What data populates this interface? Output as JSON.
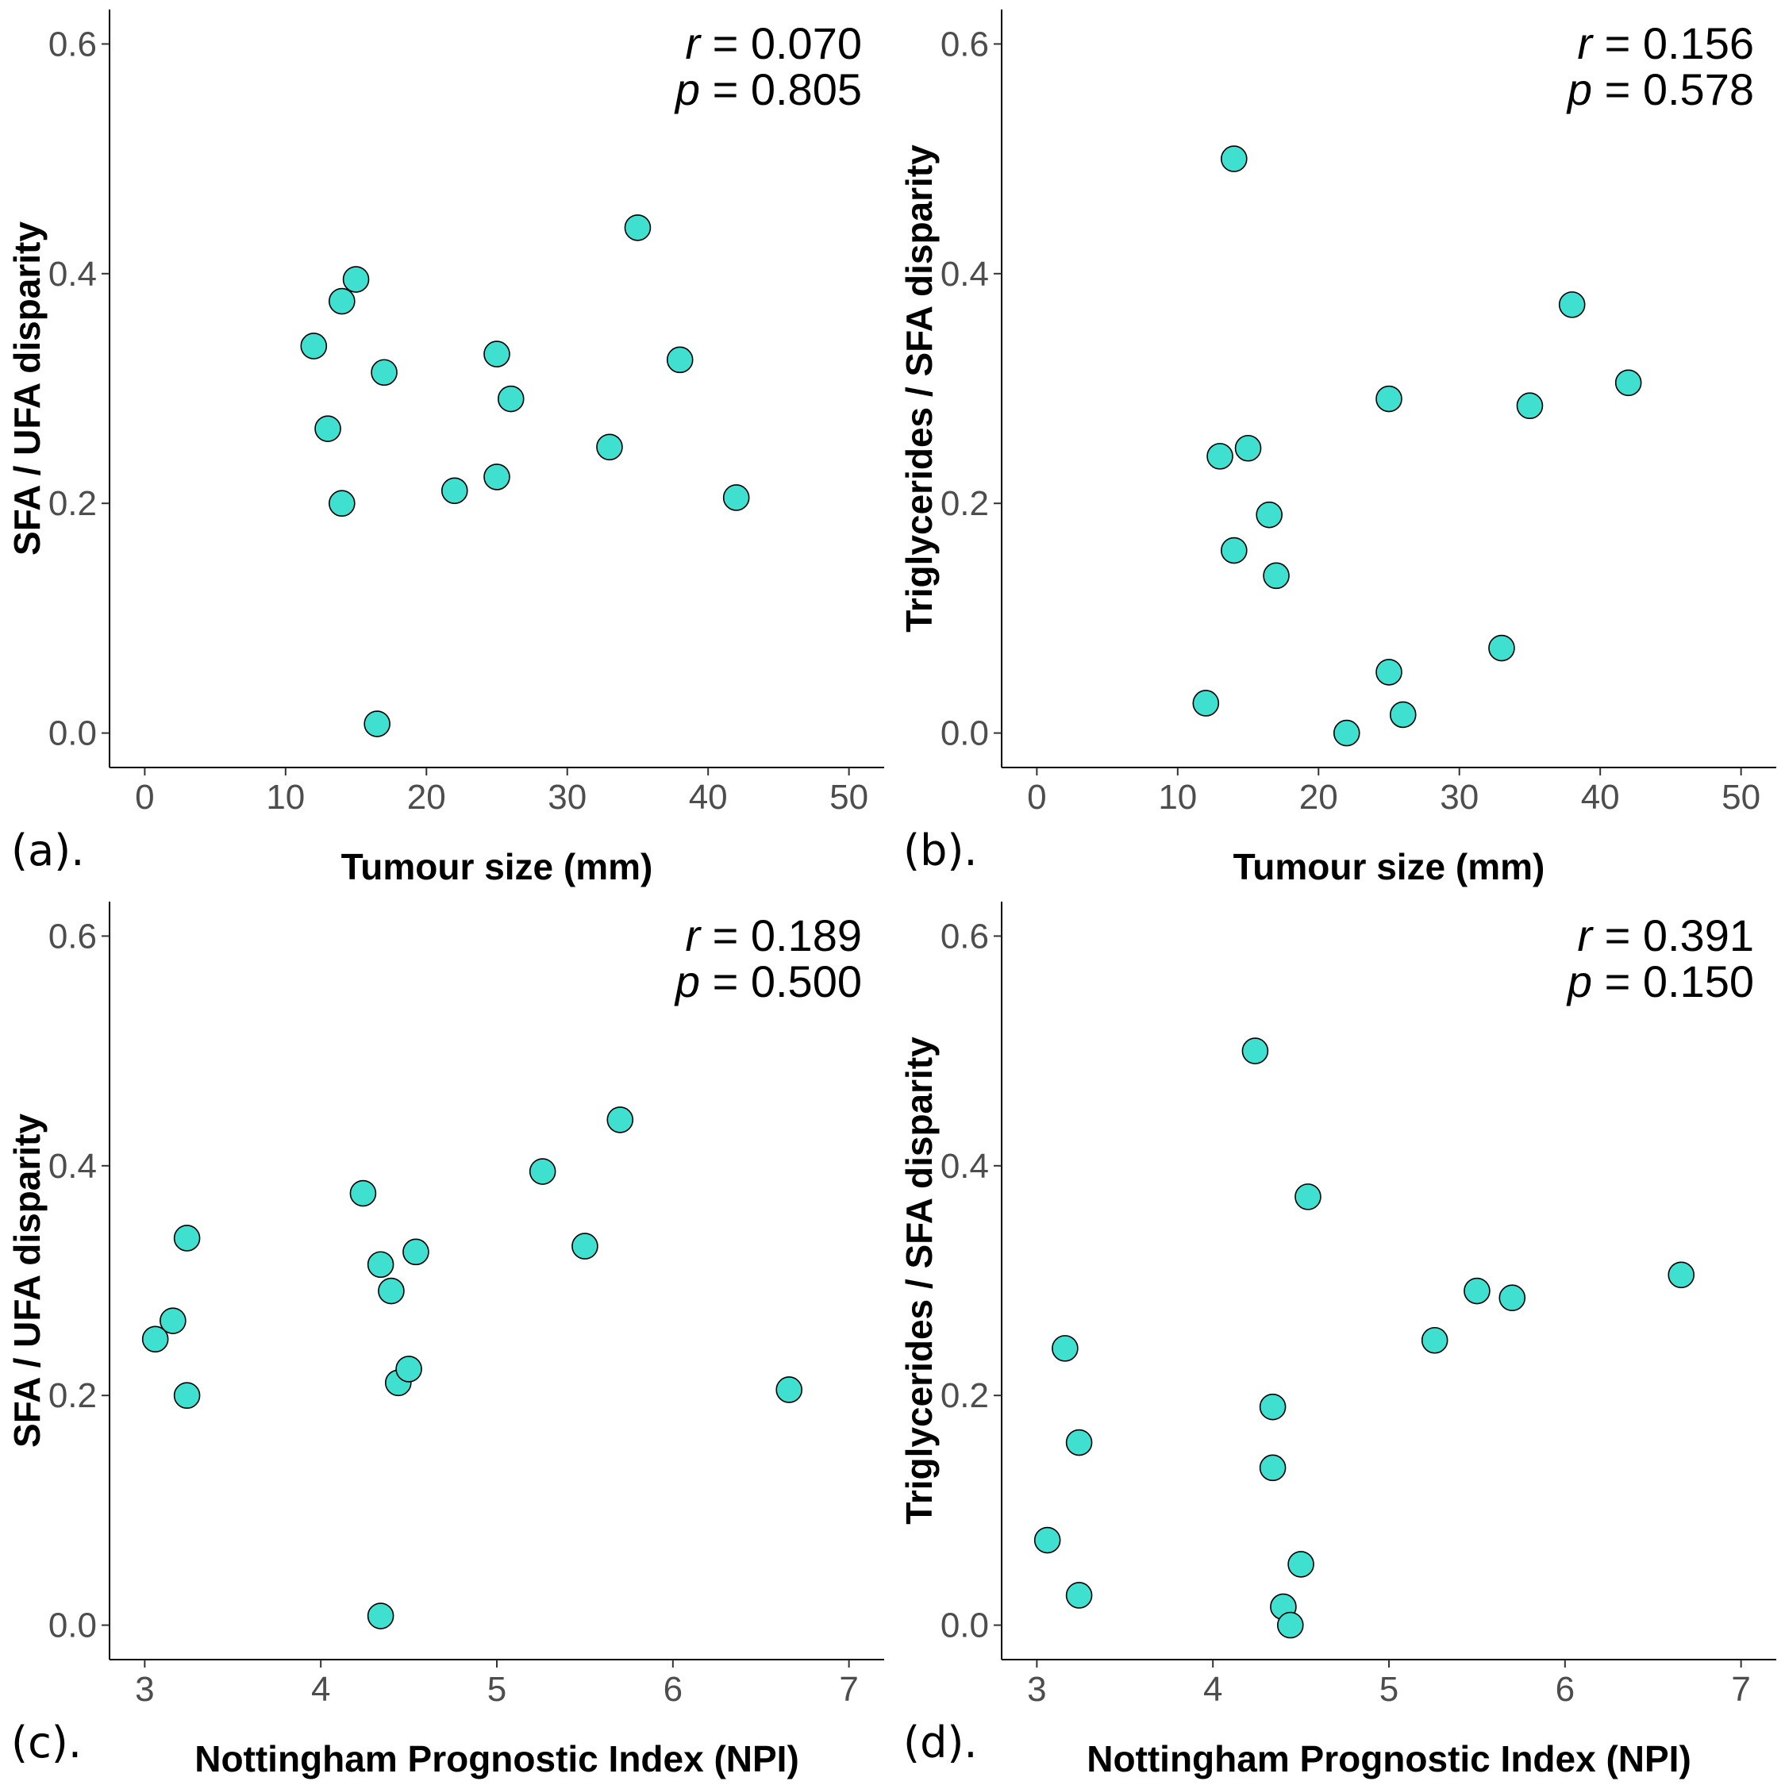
{
  "chart_data": [
    {
      "panel": "(a).",
      "type": "scatter",
      "xlabel": "Tumour size (mm)",
      "ylabel": "SFA / UFA disparity",
      "xlim": [
        -2.5,
        52.5
      ],
      "ylim": [
        -0.03,
        0.63
      ],
      "xticks": [
        0,
        10,
        20,
        30,
        40,
        50
      ],
      "yticks": [
        0.0,
        0.2,
        0.4,
        0.6
      ],
      "ytick_labels": [
        "0.0",
        "0.2",
        "0.4",
        "0.6"
      ],
      "stats": {
        "r_symbol": "r",
        "r_value": "= 0.070",
        "p_symbol": "p",
        "p_value": "= 0.805"
      },
      "marker_color": "#40E0D0",
      "points": [
        [
          12,
          0.337
        ],
        [
          13,
          0.265
        ],
        [
          14,
          0.376
        ],
        [
          14,
          0.2
        ],
        [
          15,
          0.395
        ],
        [
          16.5,
          0.008
        ],
        [
          17,
          0.314
        ],
        [
          22,
          0.211
        ],
        [
          25,
          0.33
        ],
        [
          25,
          0.223
        ],
        [
          26,
          0.291
        ],
        [
          33,
          0.249
        ],
        [
          35,
          0.44
        ],
        [
          38,
          0.325
        ],
        [
          42,
          0.205
        ]
      ]
    },
    {
      "panel": "(b).",
      "type": "scatter",
      "xlabel": "Tumour size (mm)",
      "ylabel": "Triglycerides / SFA disparity",
      "xlim": [
        -2.5,
        52.5
      ],
      "ylim": [
        -0.03,
        0.63
      ],
      "xticks": [
        0,
        10,
        20,
        30,
        40,
        50
      ],
      "yticks": [
        0.0,
        0.2,
        0.4,
        0.6
      ],
      "ytick_labels": [
        "0.0",
        "0.2",
        "0.4",
        "0.6"
      ],
      "stats": {
        "r_symbol": "r",
        "r_value": "= 0.156",
        "p_symbol": "p",
        "p_value": "= 0.578"
      },
      "marker_color": "#40E0D0",
      "points": [
        [
          12,
          0.026
        ],
        [
          13,
          0.241
        ],
        [
          14,
          0.5
        ],
        [
          14,
          0.159
        ],
        [
          15,
          0.248
        ],
        [
          16.5,
          0.19
        ],
        [
          17,
          0.137
        ],
        [
          22,
          0.0
        ],
        [
          25,
          0.291
        ],
        [
          25,
          0.053
        ],
        [
          26,
          0.016
        ],
        [
          33,
          0.074
        ],
        [
          35,
          0.285
        ],
        [
          38,
          0.373
        ],
        [
          42,
          0.305
        ]
      ]
    },
    {
      "panel": "(c).",
      "type": "scatter",
      "xlabel": "Nottingham Prognostic Index (NPI)",
      "ylabel": "SFA / UFA disparity",
      "xlim": [
        2.8,
        7.2
      ],
      "ylim": [
        -0.03,
        0.63
      ],
      "xticks": [
        3,
        4,
        5,
        6,
        7
      ],
      "yticks": [
        0.0,
        0.2,
        0.4,
        0.6
      ],
      "ytick_labels": [
        "0.0",
        "0.2",
        "0.4",
        "0.6"
      ],
      "stats": {
        "r_symbol": "r",
        "r_value": "= 0.189",
        "p_symbol": "p",
        "p_value": "= 0.500"
      },
      "marker_color": "#40E0D0",
      "points": [
        [
          3.06,
          0.249
        ],
        [
          3.16,
          0.265
        ],
        [
          3.24,
          0.337
        ],
        [
          3.24,
          0.2
        ],
        [
          4.24,
          0.376
        ],
        [
          4.34,
          0.314
        ],
        [
          4.34,
          0.008
        ],
        [
          4.4,
          0.291
        ],
        [
          4.44,
          0.211
        ],
        [
          4.5,
          0.223
        ],
        [
          4.54,
          0.325
        ],
        [
          5.26,
          0.395
        ],
        [
          5.5,
          0.33
        ],
        [
          5.7,
          0.44
        ],
        [
          6.66,
          0.205
        ]
      ]
    },
    {
      "panel": "(d).",
      "type": "scatter",
      "xlabel": "Nottingham Prognostic Index (NPI)",
      "ylabel": "Triglycerides / SFA disparity",
      "xlim": [
        2.8,
        7.2
      ],
      "ylim": [
        -0.03,
        0.63
      ],
      "xticks": [
        3,
        4,
        5,
        6,
        7
      ],
      "yticks": [
        0.0,
        0.2,
        0.4,
        0.6
      ],
      "ytick_labels": [
        "0.0",
        "0.2",
        "0.4",
        "0.6"
      ],
      "stats": {
        "r_symbol": "r",
        "r_value": "= 0.391",
        "p_symbol": "p",
        "p_value": "= 0.150"
      },
      "marker_color": "#40E0D0",
      "points": [
        [
          3.06,
          0.074
        ],
        [
          3.16,
          0.241
        ],
        [
          3.24,
          0.159
        ],
        [
          3.24,
          0.026
        ],
        [
          4.24,
          0.5
        ],
        [
          4.34,
          0.19
        ],
        [
          4.34,
          0.137
        ],
        [
          4.4,
          0.016
        ],
        [
          4.44,
          0.0
        ],
        [
          4.5,
          0.053
        ],
        [
          4.54,
          0.373
        ],
        [
          5.26,
          0.248
        ],
        [
          5.5,
          0.291
        ],
        [
          5.7,
          0.285
        ],
        [
          6.66,
          0.305
        ]
      ]
    }
  ]
}
